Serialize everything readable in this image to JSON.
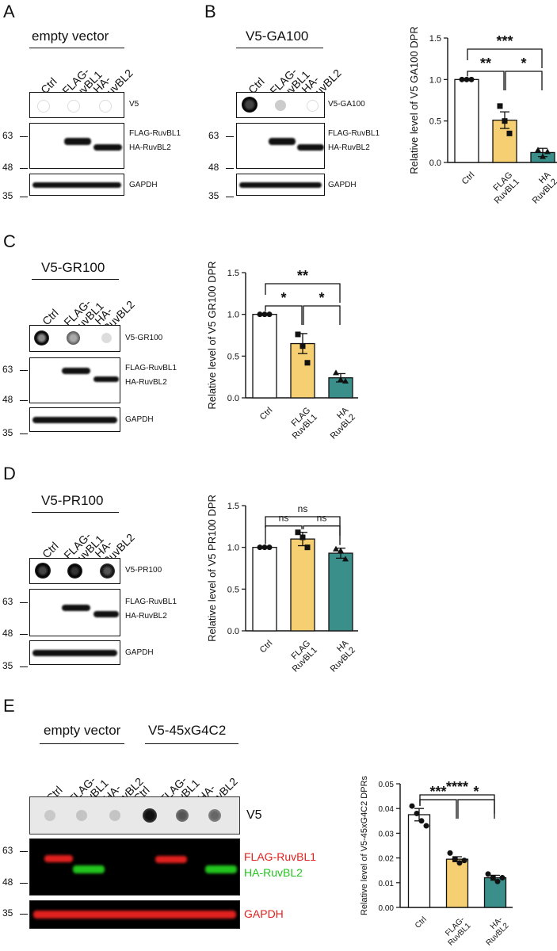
{
  "panels": {
    "A": {
      "letter": "A",
      "title": "empty vector",
      "lanes": [
        "Ctrl",
        "FLAG-\nRuvBL1",
        "HA-\nRuvBL2"
      ],
      "labels": [
        "V5",
        "FLAG-RuvBL1",
        "HA-RuvBL2",
        "GAPDH"
      ],
      "mw": [
        "63",
        "48",
        "35"
      ]
    },
    "B": {
      "letter": "B",
      "title": "V5-GA100",
      "lanes": [
        "Ctrl",
        "FLAG-\nRuvBL1",
        "HA-\nRuvBL2"
      ],
      "labels": [
        "V5-GA100",
        "FLAG-RuvBL1",
        "HA-RuvBL2",
        "GAPDH"
      ],
      "mw": [
        "63",
        "48",
        "35"
      ]
    },
    "C": {
      "letter": "C",
      "title": "V5-GR100",
      "lanes": [
        "Ctrl",
        "FLAG-\nRuvBL1",
        "HA-\nRuvBL2"
      ],
      "labels": [
        "V5-GR100",
        "FLAG-RuvBL1",
        "HA-RuvBL2",
        "GAPDH"
      ],
      "mw": [
        "63",
        "48",
        "35"
      ]
    },
    "D": {
      "letter": "D",
      "title": "V5-PR100",
      "lanes": [
        "Ctrl",
        "FLAG-\nRuvBL1",
        "HA-\nRuvBL2"
      ],
      "labels": [
        "V5-PR100",
        "FLAG-RuvBL1",
        "HA-RuvBL2",
        "GAPDH"
      ],
      "mw": [
        "63",
        "48",
        "35"
      ]
    },
    "E": {
      "letter": "E",
      "title_left": "empty vector",
      "title_right": "V5-45xG4C2",
      "lanes": [
        "Ctrl",
        "FLAG-\nRuvBL1",
        "HA-\nRuvBL2",
        "Ctrl",
        "FLAG-\nRuvBL1",
        "HA-\nRuvBL2"
      ],
      "labels": [
        "V5",
        "FLAG-RuvBL1",
        "HA-RuvBL2",
        "GAPDH"
      ],
      "mw": [
        "63",
        "48",
        "35"
      ]
    }
  },
  "colors": {
    "ctrl": "#ffffff",
    "flag": "#f6cf73",
    "ha": "#3a8f8a",
    "red": "#e0201e",
    "green": "#22c51d"
  },
  "chart_data": [
    {
      "id": "B",
      "type": "bar",
      "categories": [
        "Ctrl",
        "FLAG\nRuvBL1",
        "HA\nRuvBL2"
      ],
      "values": [
        1.0,
        0.51,
        0.12
      ],
      "errors": [
        0.0,
        0.1,
        0.05
      ],
      "points": [
        [
          1,
          1,
          1
        ],
        [
          0.68,
          0.5,
          0.35
        ],
        [
          0.15,
          0.07,
          0.13
        ]
      ],
      "markers": [
        "circle",
        "square",
        "triangle"
      ],
      "ylabel": "Relative level of V5 GA100 DPR",
      "ylim": [
        0,
        1.5
      ],
      "yticks": [
        0.0,
        0.5,
        1.0,
        1.5
      ],
      "sig": [
        {
          "a": 0,
          "b": 1,
          "text": "**",
          "level": 1
        },
        {
          "a": 1,
          "b": 2,
          "text": "*",
          "level": 1
        },
        {
          "a": 0,
          "b": 2,
          "text": "***",
          "level": 2
        }
      ]
    },
    {
      "id": "C",
      "type": "bar",
      "categories": [
        "Ctrl",
        "FLAG\nRuvBL1",
        "HA\nRuvBL2"
      ],
      "values": [
        1.0,
        0.65,
        0.24
      ],
      "errors": [
        0.0,
        0.12,
        0.05
      ],
      "points": [
        [
          1,
          1,
          1
        ],
        [
          0.76,
          0.62,
          0.42
        ],
        [
          0.3,
          0.22,
          0.2
        ]
      ],
      "markers": [
        "circle",
        "square",
        "triangle"
      ],
      "ylabel": "Relative level of V5 GR100 DPR",
      "ylim": [
        0,
        1.5
      ],
      "yticks": [
        0.0,
        0.5,
        1.0,
        1.5
      ],
      "sig": [
        {
          "a": 0,
          "b": 1,
          "text": "*",
          "level": 1
        },
        {
          "a": 1,
          "b": 2,
          "text": "*",
          "level": 1
        },
        {
          "a": 0,
          "b": 2,
          "text": "**",
          "level": 2
        }
      ]
    },
    {
      "id": "D",
      "type": "bar",
      "categories": [
        "Ctrl",
        "FLAG\nRuvBL1",
        "HA\nRuvBL2"
      ],
      "values": [
        1.0,
        1.1,
        0.93
      ],
      "errors": [
        0.0,
        0.08,
        0.06
      ],
      "points": [
        [
          1,
          1,
          1
        ],
        [
          1.18,
          1.12,
          1.0
        ],
        [
          0.98,
          0.96,
          0.86
        ]
      ],
      "markers": [
        "circle",
        "square",
        "triangle"
      ],
      "ylabel": "Relative level of V5 PR100 DPR",
      "ylim": [
        0,
        1.5
      ],
      "yticks": [
        0.0,
        0.5,
        1.0,
        1.5
      ],
      "sig": [
        {
          "a": 0,
          "b": 1,
          "text": "ns",
          "level": 1
        },
        {
          "a": 1,
          "b": 2,
          "text": "ns",
          "level": 1
        },
        {
          "a": 0,
          "b": 2,
          "text": "ns",
          "level": 2
        }
      ]
    },
    {
      "id": "E",
      "type": "bar",
      "categories": [
        "Ctrl",
        "FLAG-\nRuvBL1",
        "HA-\nRuvBL2"
      ],
      "values": [
        0.0375,
        0.0195,
        0.012
      ],
      "errors": [
        0.0025,
        0.001,
        0.001
      ],
      "points": [
        [
          0.041,
          0.038,
          0.035,
          0.033
        ],
        [
          0.022,
          0.0195,
          0.018,
          0.019
        ],
        [
          0.0135,
          0.012,
          0.0105,
          0.012
        ]
      ],
      "markers": [
        "circle",
        "circle",
        "circle"
      ],
      "ylabel": "Relative level of V5-45xG4C2 DPRs",
      "ylim": [
        0,
        0.05
      ],
      "yticks": [
        0.0,
        0.01,
        0.02,
        0.03,
        0.04,
        0.05
      ],
      "ytick_labels": [
        "0.00",
        "0.01",
        "0.02",
        "0.03",
        "0.04",
        "0.05"
      ],
      "sig": [
        {
          "a": 0,
          "b": 1,
          "text": "***",
          "level": 1
        },
        {
          "a": 1,
          "b": 2,
          "text": "*",
          "level": 1
        },
        {
          "a": 0,
          "b": 2,
          "text": "****",
          "level": 2
        }
      ]
    }
  ]
}
